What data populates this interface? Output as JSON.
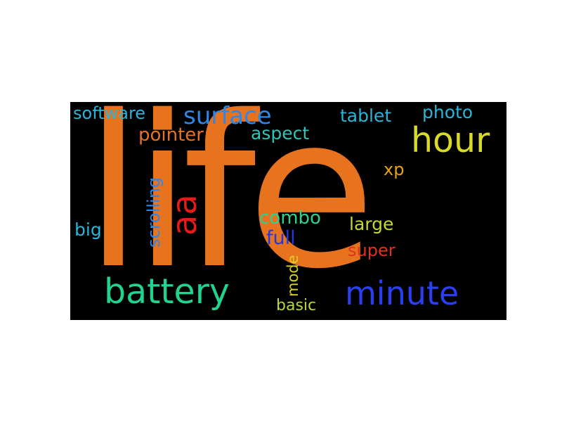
{
  "wordcloud": {
    "background": "#000000",
    "words": [
      {
        "text": "life",
        "color": "#e8731e"
      },
      {
        "text": "battery",
        "color": "#22d38d"
      },
      {
        "text": "minute",
        "color": "#2a3ff0"
      },
      {
        "text": "hour",
        "color": "#d9d92a"
      },
      {
        "text": "surface",
        "color": "#2e86e8"
      },
      {
        "text": "aa",
        "color": "#e51b1b"
      },
      {
        "text": "software",
        "color": "#2ab5d8"
      },
      {
        "text": "tablet",
        "color": "#2ab5d8"
      },
      {
        "text": "photo",
        "color": "#2ab5d8"
      },
      {
        "text": "pointer",
        "color": "#e8731e"
      },
      {
        "text": "aspect",
        "color": "#31c5b7"
      },
      {
        "text": "scrolling",
        "color": "#2e86e8"
      },
      {
        "text": "xp",
        "color": "#e8a020"
      },
      {
        "text": "combo",
        "color": "#2fd08f"
      },
      {
        "text": "large",
        "color": "#c8d82a"
      },
      {
        "text": "big",
        "color": "#2ab5d8"
      },
      {
        "text": "full",
        "color": "#2535e0"
      },
      {
        "text": "super",
        "color": "#e0301e"
      },
      {
        "text": "mode",
        "color": "#d8d020"
      },
      {
        "text": "basic",
        "color": "#b8d83a"
      }
    ]
  }
}
